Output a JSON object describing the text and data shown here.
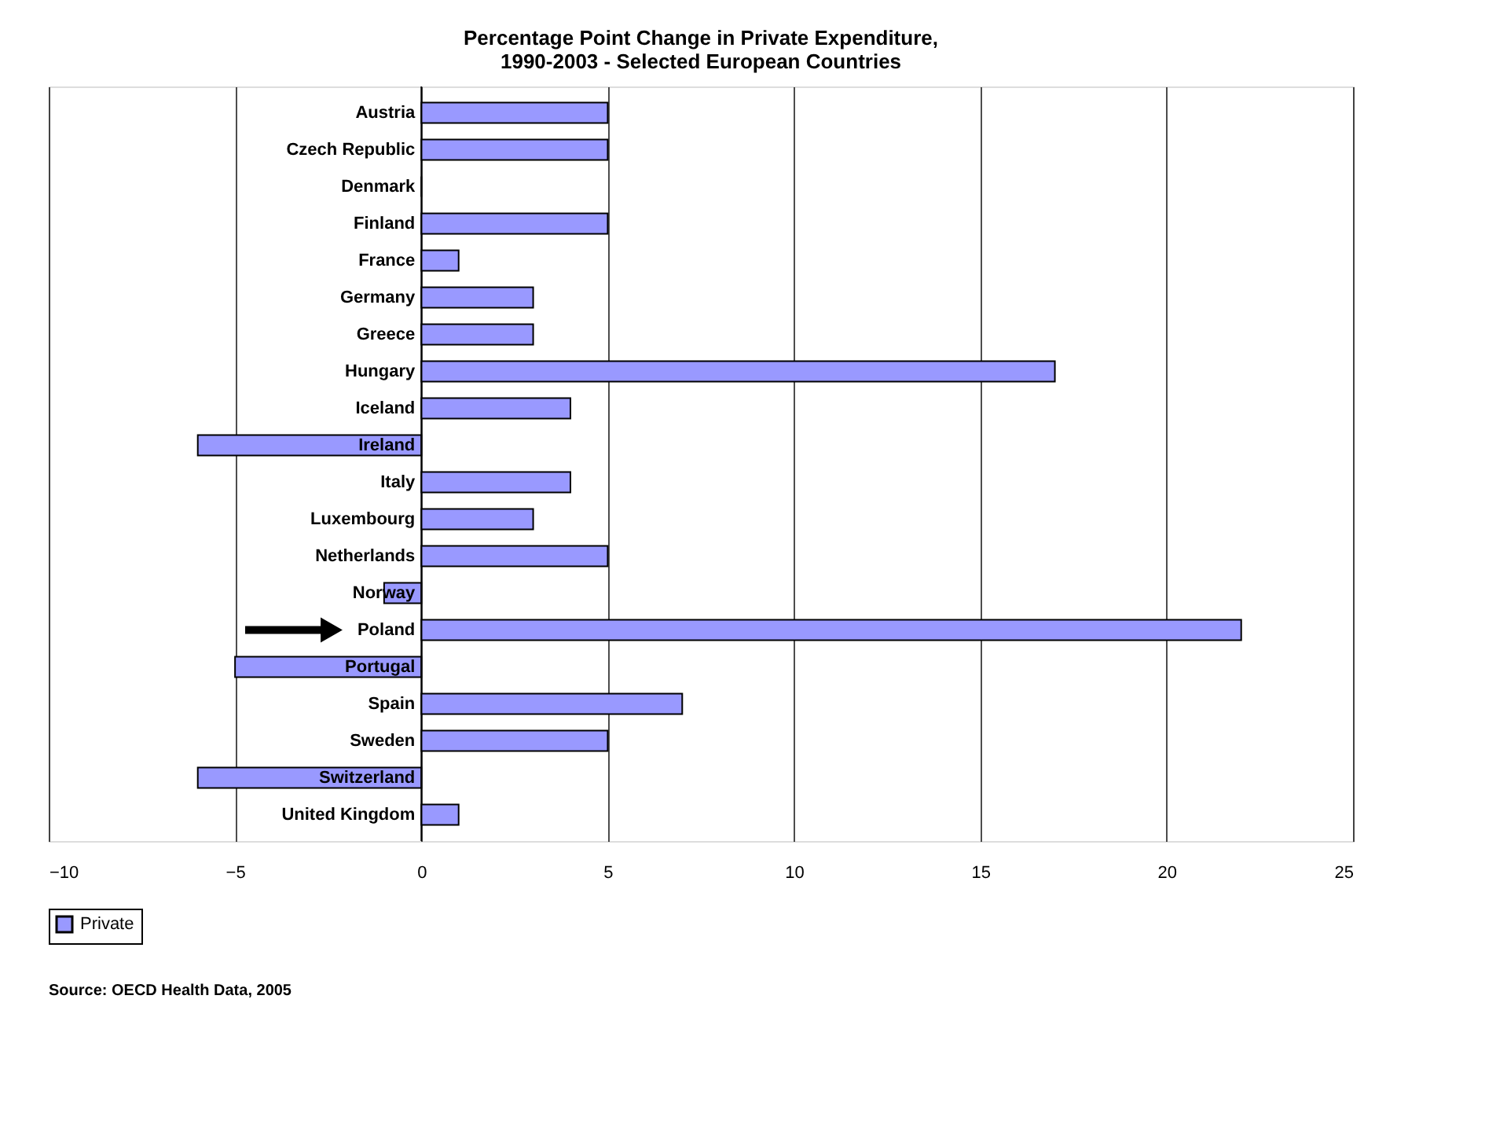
{
  "chart_data": {
    "type": "bar",
    "orientation": "horizontal",
    "title": [
      "Percentage Point Change in Private Expenditure,",
      "1990-2003 - Selected European Countries"
    ],
    "categories": [
      "Austria",
      "Czech Republic",
      "Denmark",
      "Finland",
      "France",
      "Germany",
      "Greece",
      "Hungary",
      "Iceland",
      "Ireland",
      "Italy",
      "Luxembourg",
      "Netherlands",
      "Norway",
      "Poland",
      "Portugal",
      "Spain",
      "Sweden",
      "Switzerland",
      "United Kingdom"
    ],
    "series": [
      {
        "name": "Private",
        "color": "#9999ff",
        "values": [
          5,
          5,
          0,
          5,
          1,
          3,
          3,
          17,
          4,
          -6,
          4,
          3,
          5,
          -1,
          22,
          -5,
          7,
          5,
          -6,
          1
        ]
      }
    ],
    "xlim": [
      -10,
      25
    ],
    "xticks": [
      -10,
      -5,
      0,
      5,
      10,
      15,
      20,
      25
    ],
    "grid": "x",
    "legend": "bottom",
    "annotations": [
      "Source: OECD Health Data, 2005"
    ]
  }
}
